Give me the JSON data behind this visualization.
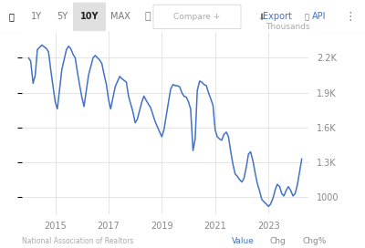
{
  "ylabel_right": "Thousands",
  "source": "National Association of Realtors",
  "line_color": "#4472C4",
  "grid_color": "#e0e0e0",
  "ylim": [
    850,
    2420
  ],
  "yticks": [
    1000,
    1300,
    1600,
    1900,
    2200
  ],
  "ytick_labels": [
    "1000",
    "1.3K",
    "1.6K",
    "1.9K",
    "2.2K"
  ],
  "xticks": [
    2015,
    2017,
    2019,
    2021,
    2023
  ],
  "xstart": 2013.75,
  "xend": 2024.5,
  "toolbar_bg": "#f8f8f8",
  "toolbar_items": [
    "1Y",
    "5Y",
    "10Y",
    "MAX"
  ],
  "toolbar_active": "10Y",
  "data": [
    [
      2014.0,
      2200
    ],
    [
      2014.08,
      2170
    ],
    [
      2014.17,
      1980
    ],
    [
      2014.25,
      2050
    ],
    [
      2014.33,
      2270
    ],
    [
      2014.5,
      2310
    ],
    [
      2014.67,
      2280
    ],
    [
      2014.75,
      2250
    ],
    [
      2014.83,
      2100
    ],
    [
      2014.92,
      1950
    ],
    [
      2015.0,
      1820
    ],
    [
      2015.08,
      1760
    ],
    [
      2015.25,
      2100
    ],
    [
      2015.42,
      2270
    ],
    [
      2015.5,
      2300
    ],
    [
      2015.58,
      2280
    ],
    [
      2015.67,
      2230
    ],
    [
      2015.75,
      2200
    ],
    [
      2015.83,
      2080
    ],
    [
      2015.92,
      1960
    ],
    [
      2016.0,
      1860
    ],
    [
      2016.08,
      1780
    ],
    [
      2016.25,
      2050
    ],
    [
      2016.42,
      2200
    ],
    [
      2016.5,
      2220
    ],
    [
      2016.67,
      2180
    ],
    [
      2016.75,
      2150
    ],
    [
      2016.83,
      2060
    ],
    [
      2016.92,
      1970
    ],
    [
      2017.0,
      1840
    ],
    [
      2017.08,
      1760
    ],
    [
      2017.25,
      1950
    ],
    [
      2017.42,
      2040
    ],
    [
      2017.5,
      2020
    ],
    [
      2017.67,
      1990
    ],
    [
      2017.75,
      1870
    ],
    [
      2017.92,
      1730
    ],
    [
      2018.0,
      1640
    ],
    [
      2018.08,
      1670
    ],
    [
      2018.25,
      1820
    ],
    [
      2018.33,
      1870
    ],
    [
      2018.42,
      1830
    ],
    [
      2018.58,
      1770
    ],
    [
      2018.75,
      1650
    ],
    [
      2018.92,
      1560
    ],
    [
      2019.0,
      1520
    ],
    [
      2019.08,
      1580
    ],
    [
      2019.25,
      1820
    ],
    [
      2019.33,
      1930
    ],
    [
      2019.42,
      1970
    ],
    [
      2019.5,
      1960
    ],
    [
      2019.58,
      1960
    ],
    [
      2019.67,
      1950
    ],
    [
      2019.75,
      1900
    ],
    [
      2019.83,
      1870
    ],
    [
      2019.92,
      1860
    ],
    [
      2020.0,
      1820
    ],
    [
      2020.08,
      1760
    ],
    [
      2020.17,
      1400
    ],
    [
      2020.25,
      1500
    ],
    [
      2020.33,
      1920
    ],
    [
      2020.42,
      2000
    ],
    [
      2020.5,
      1990
    ],
    [
      2020.58,
      1970
    ],
    [
      2020.67,
      1960
    ],
    [
      2020.75,
      1900
    ],
    [
      2020.83,
      1850
    ],
    [
      2020.92,
      1790
    ],
    [
      2021.0,
      1580
    ],
    [
      2021.08,
      1520
    ],
    [
      2021.17,
      1500
    ],
    [
      2021.25,
      1490
    ],
    [
      2021.33,
      1540
    ],
    [
      2021.42,
      1560
    ],
    [
      2021.5,
      1520
    ],
    [
      2021.58,
      1400
    ],
    [
      2021.67,
      1280
    ],
    [
      2021.75,
      1200
    ],
    [
      2021.83,
      1180
    ],
    [
      2021.92,
      1150
    ],
    [
      2022.0,
      1130
    ],
    [
      2022.08,
      1160
    ],
    [
      2022.17,
      1260
    ],
    [
      2022.25,
      1370
    ],
    [
      2022.33,
      1390
    ],
    [
      2022.42,
      1310
    ],
    [
      2022.5,
      1210
    ],
    [
      2022.58,
      1120
    ],
    [
      2022.67,
      1050
    ],
    [
      2022.75,
      980
    ],
    [
      2022.83,
      960
    ],
    [
      2022.92,
      940
    ],
    [
      2023.0,
      920
    ],
    [
      2023.08,
      940
    ],
    [
      2023.17,
      990
    ],
    [
      2023.25,
      1060
    ],
    [
      2023.33,
      1110
    ],
    [
      2023.42,
      1090
    ],
    [
      2023.5,
      1030
    ],
    [
      2023.58,
      1010
    ],
    [
      2023.67,
      1060
    ],
    [
      2023.75,
      1090
    ],
    [
      2023.83,
      1060
    ],
    [
      2023.92,
      1010
    ],
    [
      2024.0,
      1030
    ],
    [
      2024.08,
      1100
    ],
    [
      2024.17,
      1220
    ],
    [
      2024.25,
      1330
    ]
  ]
}
